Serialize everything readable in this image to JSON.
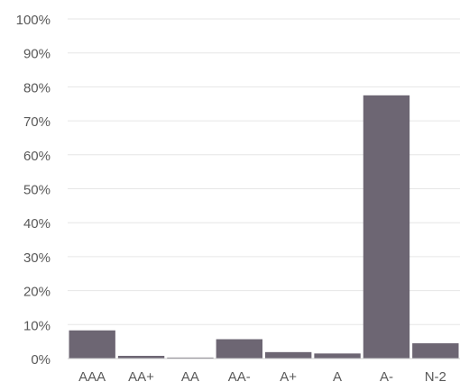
{
  "chart_data": {
    "type": "bar",
    "categories": [
      "AAA",
      "AA+",
      "AA",
      "AA-",
      "A+",
      "A",
      "A-",
      "N-2"
    ],
    "values": [
      8.3,
      0.8,
      0.3,
      5.7,
      1.9,
      1.5,
      77.5,
      4.5
    ],
    "ylim": [
      0,
      100
    ],
    "yticks": [
      0,
      10,
      20,
      30,
      40,
      50,
      60,
      70,
      80,
      90,
      100
    ],
    "ytick_labels": [
      "0%",
      "10%",
      "20%",
      "30%",
      "40%",
      "50%",
      "60%",
      "70%",
      "80%",
      "90%",
      "100%"
    ],
    "grid": true,
    "colors": {
      "bar": "#6d6673",
      "grid": "#e6e6e6",
      "axis": "#d0d0d0",
      "text": "#595959"
    }
  }
}
